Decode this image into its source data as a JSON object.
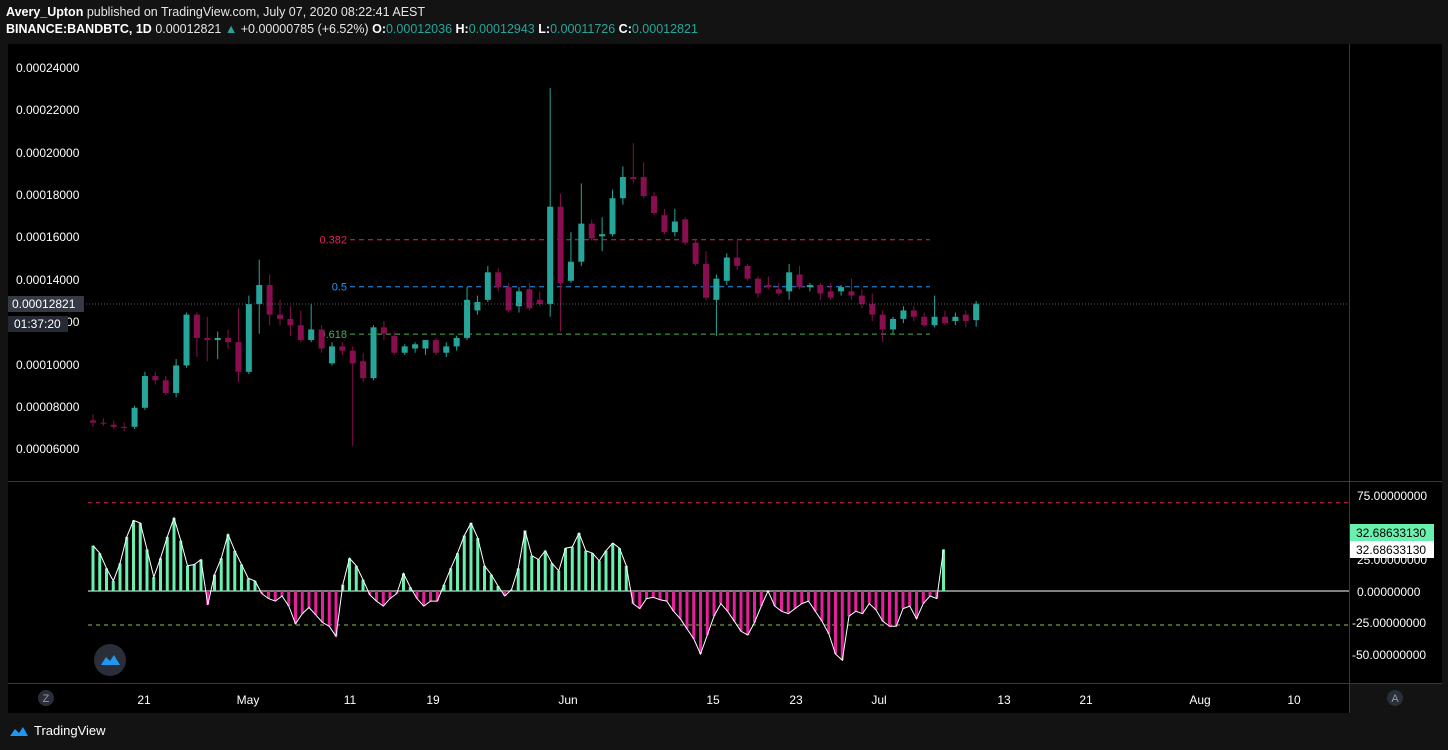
{
  "header": {
    "author": "Avery_Upton",
    "published_text": "published on TradingView.com, July 07, 2020 08:22:41 AEST",
    "symbol": "BINANCE:BANDBTC, 1D",
    "last": "0.00012821",
    "change": "+0.00000785 (+6.52%)",
    "ohlc": [
      {
        "k": "O:",
        "v": "0.00012036"
      },
      {
        "k": "H:",
        "v": "0.00012943"
      },
      {
        "k": "L:",
        "v": "0.00011726"
      },
      {
        "k": "C:",
        "v": "0.00012821"
      }
    ]
  },
  "price_axis": {
    "ticks": [
      "0.00024000",
      "0.00022000",
      "0.00020000",
      "0.00018000",
      "0.00016000",
      "0.00014000",
      "0.00012000",
      "0.00010000",
      "0.00008000",
      "0.00006000"
    ],
    "current_label": "0.00012821",
    "countdown": "01:37:20"
  },
  "oscillator_axis": {
    "ticks": [
      "75.00000000",
      "25.00000000",
      "0.00000000",
      "-25.00000000",
      "-50.00000000"
    ],
    "value_label_1": "32.68633130",
    "value_label_2": "32.68633130"
  },
  "time_axis": {
    "ticks": [
      "21",
      "May",
      "11",
      "19",
      "Jun",
      "15",
      "23",
      "Jul",
      "13",
      "21",
      "Aug",
      "10"
    ],
    "left_button": "Z",
    "right_button": "A"
  },
  "footer": {
    "brand": "TradingView"
  },
  "colors": {
    "up": "#26a69a",
    "down": "#880e4f",
    "background": "#000000",
    "fib_382": "#e91e63",
    "fib_5": "#2196f3",
    "fib_618": "#4caf50",
    "osc_pos": "#69f0ae",
    "osc_neg": "#e91e9c",
    "osc_line": "#ffffff"
  },
  "chart_data": [
    {
      "type": "candlestick",
      "title": "BINANCE:BANDBTC, 1D",
      "x_start": "2020-04-15",
      "x_end": "2020-07-06",
      "ylim": [
        5e-05,
        0.000253
      ],
      "candles": [
        [
          7.3e-05,
          7.6e-05,
          7e-05,
          7.2e-05
        ],
        [
          7.2e-05,
          7.4e-05,
          7.05e-05,
          7.15e-05
        ],
        [
          7.1e-05,
          7.3e-05,
          6.9e-05,
          7e-05
        ],
        [
          7e-05,
          7.2e-05,
          6.8e-05,
          6.95e-05
        ],
        [
          7e-05,
          8e-05,
          6.9e-05,
          7.9e-05
        ],
        [
          7.9e-05,
          9.6e-05,
          7.8e-05,
          9.4e-05
        ],
        [
          9.4e-05,
          9.6e-05,
          9e-05,
          9.2e-05
        ],
        [
          9.2e-05,
          9.4e-05,
          8.5e-05,
          8.6e-05
        ],
        [
          8.6e-05,
          0.000102,
          8.4e-05,
          9.9e-05
        ],
        [
          9.9e-05,
          0.000124,
          9.8e-05,
          0.000123
        ],
        [
          0.000123,
          0.000124,
          0.000103,
          0.000112
        ],
        [
          0.000112,
          0.000122,
          0.000101,
          0.000111
        ],
        [
          0.000111,
          0.000115,
          0.000102,
          0.000112
        ],
        [
          0.000112,
          0.000116,
          0.000107,
          0.00011
        ],
        [
          0.00011,
          0.000126,
          9.1e-05,
          9.6e-05
        ],
        [
          9.6e-05,
          0.000132,
          9.5e-05,
          0.000128
        ],
        [
          0.000128,
          0.000149,
          0.000114,
          0.000137
        ],
        [
          0.000137,
          0.000142,
          0.000118,
          0.000123
        ],
        [
          0.000123,
          0.00013,
          0.000118,
          0.000121
        ],
        [
          0.000121,
          0.000127,
          0.000113,
          0.000118
        ],
        [
          0.000118,
          0.000125,
          0.00011,
          0.000111
        ],
        [
          0.000111,
          0.000128,
          0.00011,
          0.000116
        ],
        [
          0.000116,
          0.000118,
          0.000105,
          0.000107
        ],
        [
          0.0001,
          0.00011,
          9.9e-05,
          0.000108
        ],
        [
          0.000108,
          0.00011,
          0.000104,
          0.000106
        ],
        [
          0.000106,
          0.000108,
          6.1e-05,
          0.0001
        ],
        [
          0.000101,
          0.000105,
          9.1e-05,
          9.3e-05
        ],
        [
          9.3e-05,
          0.000118,
          9.2e-05,
          0.000117
        ],
        [
          0.000117,
          0.00012,
          0.000111,
          0.000114
        ],
        [
          0.000113,
          0.000115,
          0.000104,
          0.000105
        ],
        [
          0.000105,
          0.000109,
          0.000104,
          0.000108
        ],
        [
          0.000107,
          0.00011,
          0.000105,
          0.000109
        ],
        [
          0.000107,
          0.00011,
          0.000104,
          0.000111
        ],
        [
          0.000111,
          0.000112,
          0.000104,
          0.000105
        ],
        [
          0.000105,
          0.00011,
          0.000103,
          0.000108
        ],
        [
          0.000108,
          0.000113,
          0.000106,
          0.000112
        ],
        [
          0.000112,
          0.000136,
          0.000111,
          0.00013
        ],
        [
          0.000125,
          0.000132,
          0.000123,
          0.000129
        ],
        [
          0.00013,
          0.000146,
          0.000129,
          0.000143
        ],
        [
          0.000143,
          0.000145,
          0.000134,
          0.000136
        ],
        [
          0.000136,
          0.000138,
          0.000124,
          0.000125
        ],
        [
          0.000127,
          0.000136,
          0.000124,
          0.000134
        ],
        [
          0.000135,
          0.000138,
          0.000125,
          0.000126
        ],
        [
          0.00013,
          0.000134,
          0.000127,
          0.000128
        ],
        [
          0.000128,
          0.00023,
          0.000122,
          0.000174
        ],
        [
          0.000174,
          0.00018,
          0.000115,
          0.000138
        ],
        [
          0.000139,
          0.000162,
          0.000138,
          0.000148
        ],
        [
          0.000148,
          0.000185,
          0.000146,
          0.000166
        ],
        [
          0.000166,
          0.000168,
          0.000158,
          0.000159
        ],
        [
          0.00016,
          0.000169,
          0.000153,
          0.000161
        ],
        [
          0.000161,
          0.000182,
          0.00016,
          0.000178
        ],
        [
          0.000178,
          0.000193,
          0.000175,
          0.000188
        ],
        [
          0.000188,
          0.000204,
          0.000185,
          0.000187
        ],
        [
          0.000188,
          0.000195,
          0.000178,
          0.000179
        ],
        [
          0.000179,
          0.000181,
          0.00017,
          0.000171
        ],
        [
          0.00017,
          0.000173,
          0.000161,
          0.000162
        ],
        [
          0.000162,
          0.000173,
          0.00016,
          0.000167
        ],
        [
          0.000168,
          0.000169,
          0.000156,
          0.000157
        ],
        [
          0.000157,
          0.000159,
          0.000146,
          0.000147
        ],
        [
          0.000147,
          0.000153,
          0.00013,
          0.000131
        ],
        [
          0.00013,
          0.000142,
          0.000113,
          0.00014
        ],
        [
          0.000139,
          0.000152,
          0.000137,
          0.00015
        ],
        [
          0.00015,
          0.000158,
          0.000144,
          0.000146
        ],
        [
          0.000146,
          0.000147,
          0.000139,
          0.00014
        ],
        [
          0.00014,
          0.000141,
          0.000131,
          0.000133
        ],
        [
          0.000137,
          0.000141,
          0.000135,
          0.000136
        ],
        [
          0.000135,
          0.000138,
          0.000132,
          0.000133
        ],
        [
          0.000134,
          0.000147,
          0.00013,
          0.000143
        ],
        [
          0.000142,
          0.000146,
          0.000135,
          0.000136
        ],
        [
          0.000136,
          0.000138,
          0.000134,
          0.000137
        ],
        [
          0.000137,
          0.000138,
          0.00013,
          0.000133
        ],
        [
          0.000134,
          0.000138,
          0.00013,
          0.000131
        ],
        [
          0.000134,
          0.000137,
          0.000132,
          0.000136
        ],
        [
          0.000134,
          0.00014,
          0.00013,
          0.000132
        ],
        [
          0.000132,
          0.000135,
          0.000126,
          0.000128
        ],
        [
          0.000128,
          0.000133,
          0.00012,
          0.000123
        ],
        [
          0.000123,
          0.000125,
          0.00011,
          0.000116
        ],
        [
          0.000116,
          0.000122,
          0.000114,
          0.000121
        ],
        [
          0.000121,
          0.000127,
          0.000119,
          0.000125
        ],
        [
          0.000125,
          0.000127,
          0.00012,
          0.000122
        ],
        [
          0.000122,
          0.000124,
          0.000117,
          0.000118
        ],
        [
          0.000118,
          0.000132,
          0.000117,
          0.000122
        ],
        [
          0.000122,
          0.000125,
          0.000118,
          0.000119
        ],
        [
          0.00012,
          0.000124,
          0.000118,
          0.000122
        ],
        [
          0.000123,
          0.000125,
          0.000117,
          0.00012
        ],
        [
          0.0001204,
          0.0001294,
          0.0001173,
          0.0001282
        ]
      ],
      "fib_levels": [
        {
          "label": "0.382",
          "value": 0.0001584
        },
        {
          "label": "0.5",
          "value": 0.0001362
        },
        {
          "label": "0.618",
          "value": 0.0001138
        }
      ]
    },
    {
      "type": "histogram",
      "series_values": [
        36,
        30,
        18,
        8,
        22,
        43,
        56,
        54,
        33,
        11,
        26,
        43,
        58,
        40,
        20,
        21,
        25,
        -11,
        13,
        26,
        45,
        32,
        21,
        10,
        8,
        -2,
        -6,
        -8,
        -4,
        -12,
        -26,
        -18,
        -13,
        -19,
        -25,
        -28,
        -36,
        5,
        26,
        20,
        9,
        -3,
        -8,
        -12,
        -6,
        -2,
        14,
        3,
        -6,
        -12,
        -8,
        -8,
        5,
        18,
        30,
        44,
        54,
        42,
        20,
        13,
        4,
        -4,
        1,
        18,
        48,
        28,
        25,
        32,
        22,
        16,
        34,
        35,
        46,
        32,
        30,
        24,
        32,
        38,
        34,
        20,
        -10,
        -14,
        -6,
        -5,
        -7,
        -8,
        -16,
        -22,
        -30,
        -38,
        -50,
        -35,
        -20,
        -10,
        -16,
        -24,
        -32,
        -35,
        -25,
        -12,
        0,
        -12,
        -16,
        -18,
        -14,
        -10,
        -8,
        -16,
        -24,
        -34,
        -50,
        -55,
        -20,
        -16,
        -18,
        -10,
        -15,
        -24,
        -28,
        -28,
        -14,
        -12,
        -22,
        -10,
        -4,
        -6,
        33
      ],
      "last_value": 32.6863313,
      "levels": [
        70,
        -27
      ],
      "ylim": [
        -65,
        80
      ]
    }
  ]
}
